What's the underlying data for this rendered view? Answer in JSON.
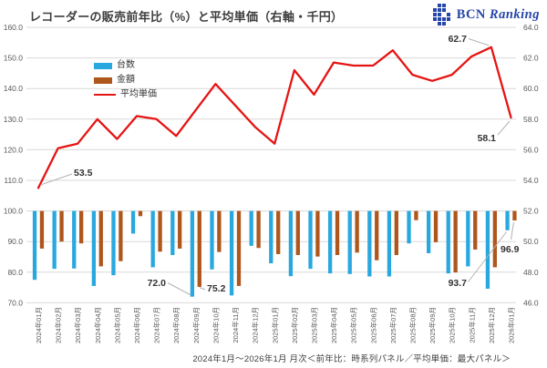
{
  "header": {
    "title": "レコーダーの販売前年比（%）と平均単価（右軸・千円）",
    "logo_text_1": "BCN",
    "logo_text_2": "Ranking",
    "logo_color": "#2545A8"
  },
  "legend": [
    {
      "label": "台数",
      "color": "#29A8E0",
      "type": "bar"
    },
    {
      "label": "金額",
      "color": "#AE561C",
      "type": "bar"
    },
    {
      "label": "平均単価",
      "color": "#E51413",
      "type": "line"
    }
  ],
  "footer": {
    "caption": "2024年1月～2026年1月 月次＜前年比：時系列パネル／平均単価：最大パネル＞"
  },
  "axes": {
    "left_ticks": [
      "160.0",
      "150.0",
      "140.0",
      "130.0",
      "120.0",
      "110.0",
      "100.0",
      "90.0",
      "80.0",
      "70.0"
    ],
    "right_ticks": [
      "64.0",
      "62.0",
      "60.0",
      "58.0",
      "56.0",
      "54.0",
      "52.0",
      "50.0",
      "48.0",
      "46.0"
    ]
  },
  "chart_data": {
    "type": "bar",
    "subtype": "grouped-bars-plus-line",
    "title": "レコーダーの販売前年比（%）と平均単価（右軸・千円）",
    "grid": "horizontal",
    "legend_position": "inside-upper-left",
    "left_axis": {
      "min": 70,
      "max": 160,
      "step": 10,
      "bar_baseline": 100
    },
    "right_axis": {
      "min": 46,
      "max": 64,
      "step": 2
    },
    "categories": [
      "2024年01月",
      "2024年02月",
      "2024年03月",
      "2024年04月",
      "2024年05月",
      "2024年06月",
      "2024年07月",
      "2024年08月",
      "2024年09月",
      "2024年10月",
      "2024年11月",
      "2024年12月",
      "2025年01月",
      "2025年02月",
      "2025年03月",
      "2025年04月",
      "2025年05月",
      "2025年06月",
      "2025年07月",
      "2025年08月",
      "2025年09月",
      "2025年10月",
      "2025年11月",
      "2025年12月",
      "2026年01月"
    ],
    "series": [
      {
        "name": "台数",
        "type": "bar",
        "axis": "left",
        "color": "#29A8E0",
        "values": [
          77.5,
          81.1,
          81.2,
          75.5,
          79.0,
          92.6,
          81.6,
          85.6,
          72.0,
          80.9,
          72.4,
          88.6,
          82.9,
          78.7,
          81.1,
          79.6,
          79.4,
          78.6,
          78.6,
          89.4,
          86.2,
          79.6,
          81.9,
          74.6,
          93.7
        ]
      },
      {
        "name": "金額",
        "type": "bar",
        "axis": "left",
        "color": "#AE561C",
        "values": [
          87.7,
          90.0,
          89.4,
          81.9,
          83.6,
          98.3,
          86.7,
          87.7,
          75.2,
          86.6,
          75.5,
          87.9,
          85.9,
          85.6,
          85.1,
          85.6,
          86.4,
          83.9,
          85.6,
          97.0,
          89.8,
          79.9,
          87.4,
          81.6,
          96.9
        ]
      },
      {
        "name": "平均単価",
        "type": "line",
        "axis": "right",
        "color": "#E51413",
        "values": [
          53.5,
          56.1,
          56.4,
          58.0,
          56.7,
          58.2,
          58.0,
          56.9,
          58.6,
          60.3,
          58.9,
          57.5,
          56.4,
          61.2,
          59.6,
          61.7,
          61.5,
          61.5,
          62.5,
          60.9,
          60.5,
          60.9,
          62.1,
          62.7,
          58.1
        ]
      }
    ],
    "annotations": [
      {
        "series": "平均単価",
        "index": 0,
        "text": "53.5"
      },
      {
        "series": "平均単価",
        "index": 23,
        "text": "62.7"
      },
      {
        "series": "平均単価",
        "index": 24,
        "text": "58.1"
      },
      {
        "series": "台数",
        "index": 8,
        "text": "72.0"
      },
      {
        "series": "金額",
        "index": 8,
        "text": "75.2"
      },
      {
        "series": "台数",
        "index": 24,
        "text": "93.7"
      },
      {
        "series": "金額",
        "index": 24,
        "text": "96.9"
      }
    ]
  }
}
